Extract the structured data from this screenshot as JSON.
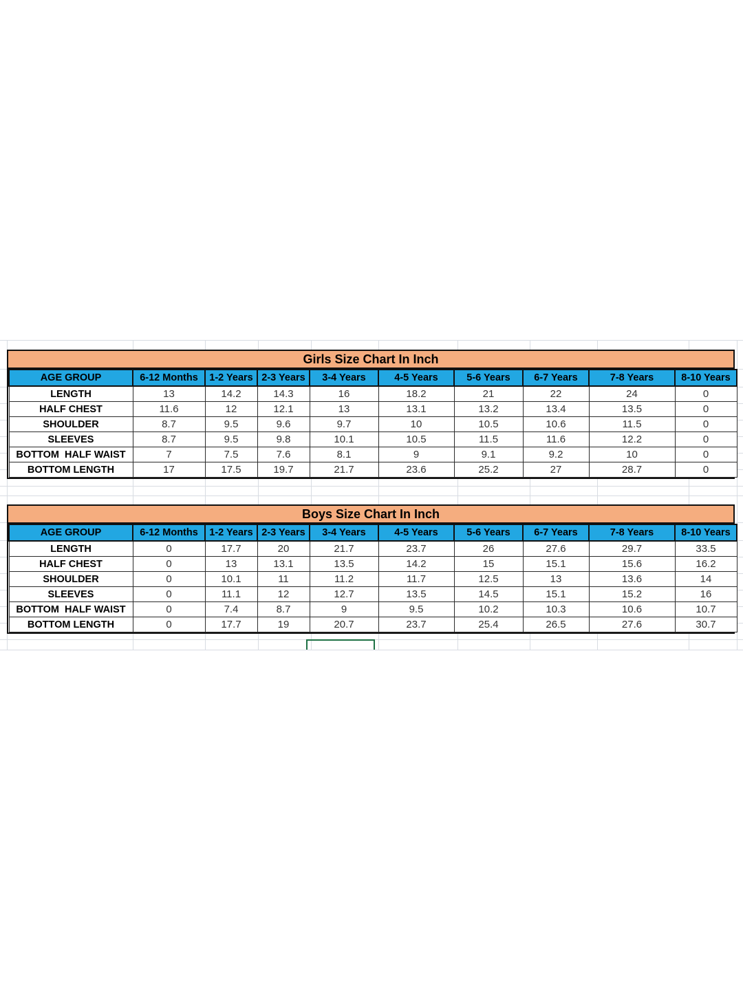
{
  "colors": {
    "title_bg": "#F5AD7F",
    "header_bg": "#22A7E2",
    "border_dark": "#111111",
    "cell_border": "#2a2a2a",
    "grid_line": "#D8DCE2",
    "selection": "#1E7145",
    "label_text": "#000000",
    "value_text": "#333333",
    "page_bg": "#ffffff"
  },
  "tables": [
    {
      "title": "Girls Size Chart In Inch",
      "columns": [
        "AGE GROUP",
        "6-12 Months",
        "1-2 Years",
        "2-3 Years",
        "3-4 Years",
        "4-5 Years",
        "5-6 Years",
        "6-7 Years",
        "7-8 Years",
        "8-10 Years"
      ],
      "rows": [
        {
          "label": "LENGTH",
          "values": [
            "13",
            "14.2",
            "14.3",
            "16",
            "18.2",
            "21",
            "22",
            "24",
            "0"
          ]
        },
        {
          "label": "HALF CHEST",
          "values": [
            "11.6",
            "12",
            "12.1",
            "13",
            "13.1",
            "13.2",
            "13.4",
            "13.5",
            "0"
          ]
        },
        {
          "label": "SHOULDER",
          "values": [
            "8.7",
            "9.5",
            "9.6",
            "9.7",
            "10",
            "10.5",
            "10.6",
            "11.5",
            "0"
          ]
        },
        {
          "label": "SLEEVES",
          "values": [
            "8.7",
            "9.5",
            "9.8",
            "10.1",
            "10.5",
            "11.5",
            "11.6",
            "12.2",
            "0"
          ]
        },
        {
          "label": "BOTTOM  HALF WAIST",
          "values": [
            "7",
            "7.5",
            "7.6",
            "8.1",
            "9",
            "9.1",
            "9.2",
            "10",
            "0"
          ]
        },
        {
          "label": "BOTTOM LENGTH",
          "values": [
            "17",
            "17.5",
            "19.7",
            "21.7",
            "23.6",
            "25.2",
            "27",
            "28.7",
            "0"
          ]
        }
      ]
    },
    {
      "title": "Boys Size Chart In Inch",
      "columns": [
        "AGE GROUP",
        "6-12 Months",
        "1-2 Years",
        "2-3 Years",
        "3-4 Years",
        "4-5 Years",
        "5-6 Years",
        "6-7 Years",
        "7-8 Years",
        "8-10 Years"
      ],
      "rows": [
        {
          "label": "LENGTH",
          "values": [
            "0",
            "17.7",
            "20",
            "21.7",
            "23.7",
            "26",
            "27.6",
            "29.7",
            "33.5"
          ]
        },
        {
          "label": "HALF CHEST",
          "values": [
            "0",
            "13",
            "13.1",
            "13.5",
            "14.2",
            "15",
            "15.1",
            "15.6",
            "16.2"
          ]
        },
        {
          "label": "SHOULDER",
          "values": [
            "0",
            "10.1",
            "11",
            "11.2",
            "11.7",
            "12.5",
            "13",
            "13.6",
            "14"
          ]
        },
        {
          "label": "SLEEVES",
          "values": [
            "0",
            "11.1",
            "12",
            "12.7",
            "13.5",
            "14.5",
            "15.1",
            "15.2",
            "16"
          ]
        },
        {
          "label": "BOTTOM  HALF WAIST",
          "values": [
            "0",
            "7.4",
            "8.7",
            "9",
            "9.5",
            "10.2",
            "10.3",
            "10.6",
            "10.7"
          ]
        },
        {
          "label": "BOTTOM LENGTH",
          "values": [
            "0",
            "17.7",
            "19",
            "20.7",
            "23.7",
            "25.4",
            "26.5",
            "27.6",
            "30.7"
          ]
        }
      ]
    }
  ]
}
